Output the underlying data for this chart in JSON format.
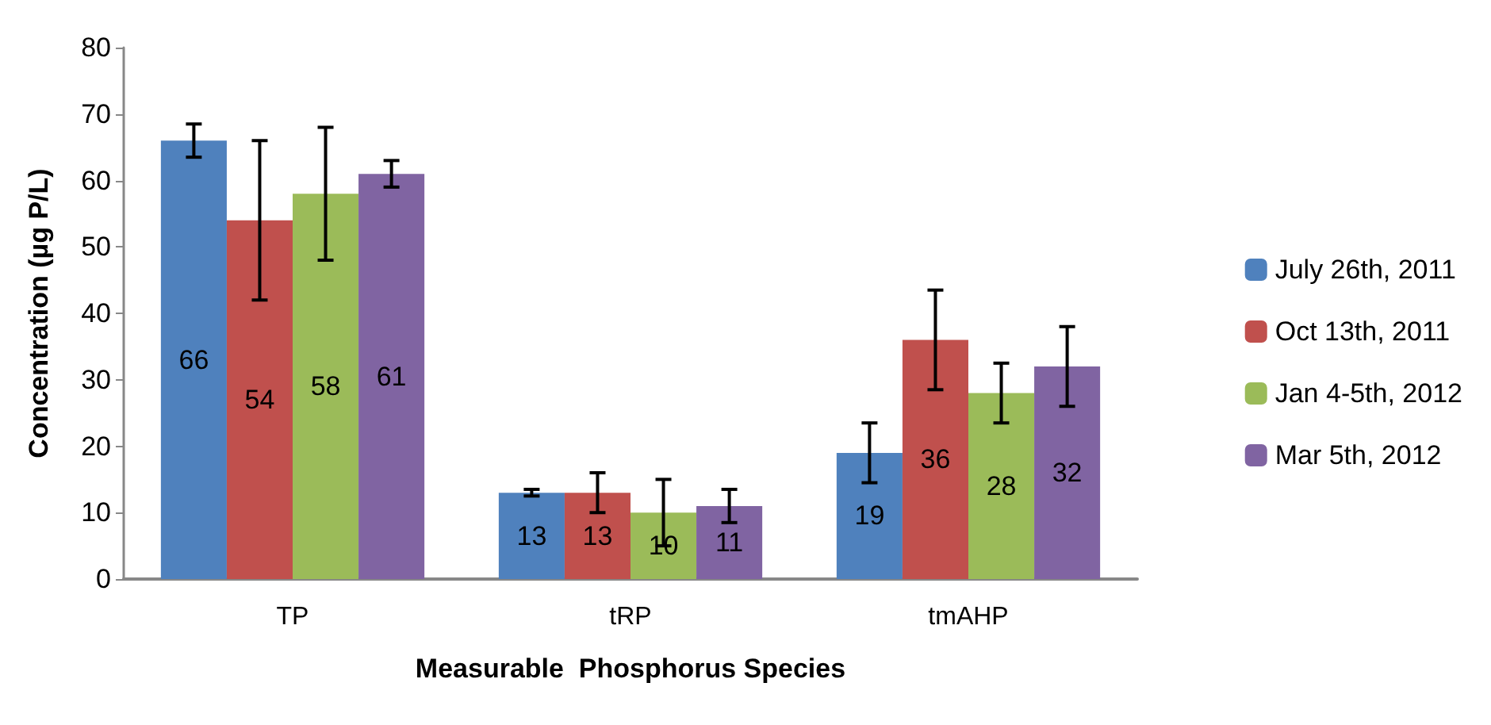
{
  "chart_data": {
    "type": "bar",
    "xlabel": "Measurable  Phosphorus Species",
    "ylabel": "Concentration (µg P/L)",
    "categories": [
      "TP",
      "tRP",
      "tmAHP"
    ],
    "series": [
      {
        "name": "July 26th, 2011",
        "color": "#4f81bd",
        "values": [
          66,
          13,
          19
        ],
        "errors": [
          2.5,
          0.5,
          4.5
        ]
      },
      {
        "name": "Oct 13th, 2011",
        "color": "#c0504d",
        "values": [
          54,
          13,
          36
        ],
        "errors": [
          12,
          3,
          7.5
        ]
      },
      {
        "name": "Jan 4-5th, 2012",
        "color": "#9bbb59",
        "values": [
          58,
          10,
          28
        ],
        "errors": [
          10,
          5,
          4.5
        ]
      },
      {
        "name": "Mar 5th, 2012",
        "color": "#8064a2",
        "values": [
          61,
          11,
          32
        ],
        "errors": [
          2,
          2.5,
          6
        ]
      }
    ],
    "ylim": [
      0,
      80
    ],
    "yticks": [
      0,
      10,
      20,
      30,
      40,
      50,
      60,
      70,
      80
    ],
    "grid": false,
    "legend": "right",
    "data_labels": true
  }
}
